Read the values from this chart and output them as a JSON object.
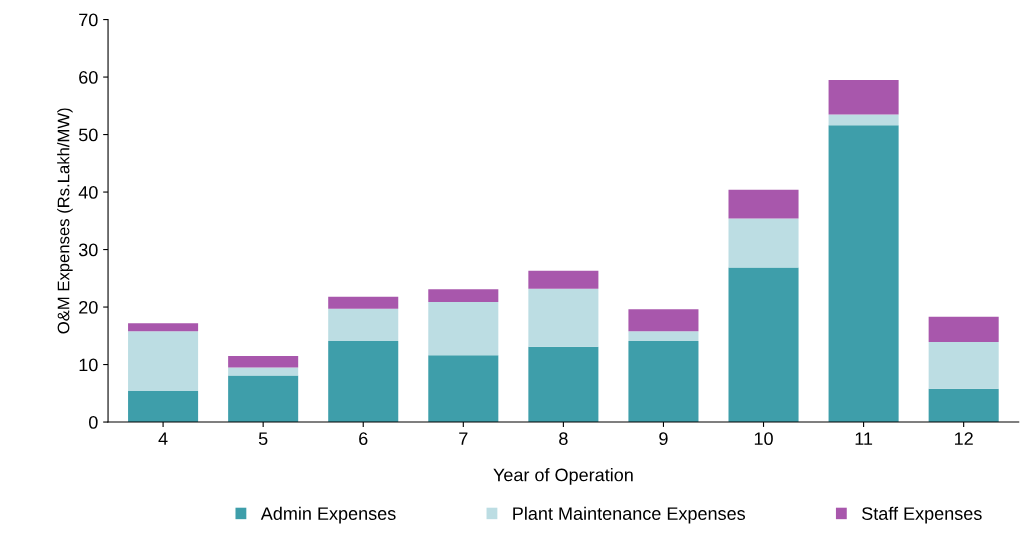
{
  "chart_data": {
    "type": "bar",
    "stacked": true,
    "xlabel": "Year of Operation",
    "ylabel": "O&M Expenses (Rs.Lakh/MW)",
    "categories": [
      "4",
      "5",
      "6",
      "7",
      "8",
      "9",
      "10",
      "11",
      "12"
    ],
    "series": [
      {
        "name": "Admin Expenses",
        "color": "#3e9eaa",
        "values": [
          5.4,
          8.1,
          14.1,
          11.6,
          13.1,
          14.1,
          26.9,
          51.6,
          5.8
        ]
      },
      {
        "name": "Plant Maintenance Expenses",
        "color": "#bcdde3",
        "values": [
          10.4,
          1.4,
          5.6,
          9.3,
          10.1,
          1.7,
          8.5,
          1.9,
          8.1
        ]
      },
      {
        "name": "Staff Expenses",
        "color": "#a857ac",
        "values": [
          1.4,
          2.0,
          2.1,
          2.2,
          3.1,
          3.8,
          5.0,
          6.0,
          4.4
        ]
      }
    ],
    "ylim": [
      0,
      70
    ],
    "yticks": [
      0,
      10,
      20,
      30,
      40,
      50,
      60,
      70
    ],
    "grid": false,
    "legend": "bottom"
  }
}
